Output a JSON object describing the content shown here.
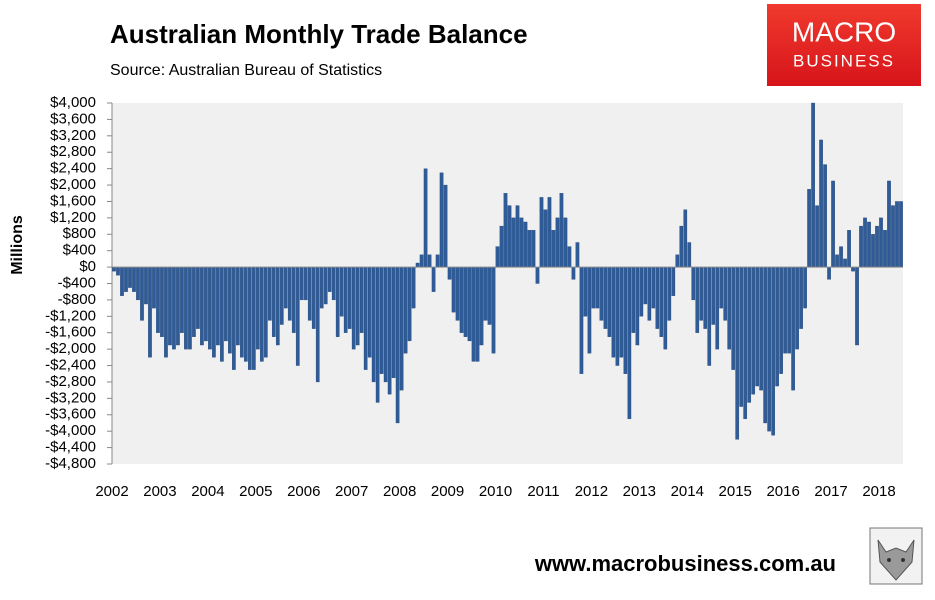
{
  "chart_data": {
    "type": "bar",
    "title": "Australian Monthly Trade Balance",
    "subtitle": "Source: Australian Bureau of Statistics",
    "y_label": "Millions",
    "color": "#2f5b97",
    "grid": false,
    "ylim": [
      -4800,
      4000
    ],
    "yticks": [
      {
        "value": 4000,
        "label": "$4,000"
      },
      {
        "value": 3600,
        "label": "$3,600"
      },
      {
        "value": 3200,
        "label": "$3,200"
      },
      {
        "value": 2800,
        "label": "$2,800"
      },
      {
        "value": 2400,
        "label": "$2,400"
      },
      {
        "value": 2000,
        "label": "$2,000"
      },
      {
        "value": 1600,
        "label": "$1,600"
      },
      {
        "value": 1200,
        "label": "$1,200"
      },
      {
        "value": 800,
        "label": "$800"
      },
      {
        "value": 400,
        "label": "$400"
      },
      {
        "value": 0,
        "label": "$0"
      },
      {
        "value": -400,
        "label": "-$400"
      },
      {
        "value": -800,
        "label": "-$800"
      },
      {
        "value": -1200,
        "label": "-$1,200"
      },
      {
        "value": -1600,
        "label": "-$1,600"
      },
      {
        "value": -2000,
        "label": "-$2,000"
      },
      {
        "value": -2400,
        "label": "-$2,400"
      },
      {
        "value": -2800,
        "label": "-$2,800"
      },
      {
        "value": -3200,
        "label": "-$3,200"
      },
      {
        "value": -3600,
        "label": "-$3,600"
      },
      {
        "value": -4000,
        "label": "-$4,000"
      },
      {
        "value": -4400,
        "label": "-$4,400"
      },
      {
        "value": -4800,
        "label": "-$4,800"
      }
    ],
    "categories": [
      "2002",
      null,
      null,
      null,
      null,
      null,
      null,
      null,
      null,
      null,
      null,
      null,
      "2003",
      null,
      null,
      null,
      null,
      null,
      null,
      null,
      null,
      null,
      null,
      null,
      "2004",
      null,
      null,
      null,
      null,
      null,
      null,
      null,
      null,
      null,
      null,
      null,
      "2005",
      null,
      null,
      null,
      null,
      null,
      null,
      null,
      null,
      null,
      null,
      null,
      "2006",
      null,
      null,
      null,
      null,
      null,
      null,
      null,
      null,
      null,
      null,
      null,
      "2007",
      null,
      null,
      null,
      null,
      null,
      null,
      null,
      null,
      null,
      null,
      null,
      "2008",
      null,
      null,
      null,
      null,
      null,
      null,
      null,
      null,
      null,
      null,
      null,
      "2009",
      null,
      null,
      null,
      null,
      null,
      null,
      null,
      null,
      null,
      null,
      null,
      "2010",
      null,
      null,
      null,
      null,
      null,
      null,
      null,
      null,
      null,
      null,
      null,
      "2011",
      null,
      null,
      null,
      null,
      null,
      null,
      null,
      null,
      null,
      null,
      null,
      "2012",
      null,
      null,
      null,
      null,
      null,
      null,
      null,
      null,
      null,
      null,
      null,
      "2013",
      null,
      null,
      null,
      null,
      null,
      null,
      null,
      null,
      null,
      null,
      null,
      "2014",
      null,
      null,
      null,
      null,
      null,
      null,
      null,
      null,
      null,
      null,
      null,
      "2015",
      null,
      null,
      null,
      null,
      null,
      null,
      null,
      null,
      null,
      null,
      null,
      "2016",
      null,
      null,
      null,
      null,
      null,
      null,
      null,
      null,
      null,
      null,
      null,
      "2017",
      null,
      null,
      null,
      null,
      null,
      null,
      null,
      null,
      null,
      null,
      null,
      "2018",
      null,
      null,
      null,
      null,
      null
    ],
    "values": [
      -100,
      -200,
      -700,
      -600,
      -500,
      -600,
      -800,
      -1300,
      -900,
      -2200,
      -1000,
      -1600,
      -1700,
      -2200,
      -1900,
      -2000,
      -1900,
      -1600,
      -2000,
      -2000,
      -1700,
      -1500,
      -1900,
      -1800,
      -2000,
      -2200,
      -1900,
      -2300,
      -1800,
      -2100,
      -2500,
      -1900,
      -2200,
      -2300,
      -2500,
      -2500,
      -2000,
      -2300,
      -2200,
      -1300,
      -1700,
      -1900,
      -1400,
      -1000,
      -1300,
      -1600,
      -2400,
      -800,
      -800,
      -1300,
      -1500,
      -2800,
      -1000,
      -900,
      -600,
      -800,
      -1700,
      -1200,
      -1600,
      -1500,
      -2000,
      -1900,
      -1600,
      -2500,
      -2200,
      -2800,
      -3300,
      -2600,
      -2800,
      -3100,
      -2700,
      -3800,
      -3000,
      -2100,
      -1800,
      -1000,
      100,
      300,
      2400,
      300,
      -600,
      300,
      2300,
      2000,
      -300,
      -1100,
      -1300,
      -1600,
      -1700,
      -1800,
      -2300,
      -2300,
      -1900,
      -1300,
      -1400,
      -2100,
      500,
      1000,
      1800,
      1500,
      1200,
      1500,
      1200,
      1100,
      900,
      900,
      -400,
      1700,
      1400,
      1700,
      900,
      1200,
      1800,
      1200,
      500,
      -300,
      600,
      -2600,
      -1200,
      -2100,
      -1000,
      -1000,
      -1300,
      -1500,
      -1700,
      -2200,
      -2400,
      -2200,
      -2600,
      -3700,
      -1600,
      -1900,
      -1200,
      -900,
      -1300,
      -1000,
      -1500,
      -1700,
      -2000,
      -1300,
      -700,
      300,
      1000,
      1400,
      600,
      -800,
      -1600,
      -1300,
      -1500,
      -2400,
      -1400,
      -2000,
      -1000,
      -1300,
      -2000,
      -2500,
      -4200,
      -3400,
      -3700,
      -3300,
      -3100,
      -2900,
      -3000,
      -3800,
      -4000,
      -4100,
      -2900,
      -2600,
      -2100,
      -2100,
      -3000,
      -2000,
      -1500,
      -1000,
      1900,
      4000,
      1500,
      3100,
      2500,
      -300,
      2100,
      300,
      500,
      200,
      900,
      -100,
      -1900,
      1000,
      1200,
      1100,
      800,
      1000,
      1200,
      900,
      2100,
      1500,
      1600,
      1600
    ]
  },
  "branding": {
    "logo_top": "MACRO",
    "logo_bottom": "BUSINESS",
    "url": "www.macrobusiness.com.au"
  }
}
